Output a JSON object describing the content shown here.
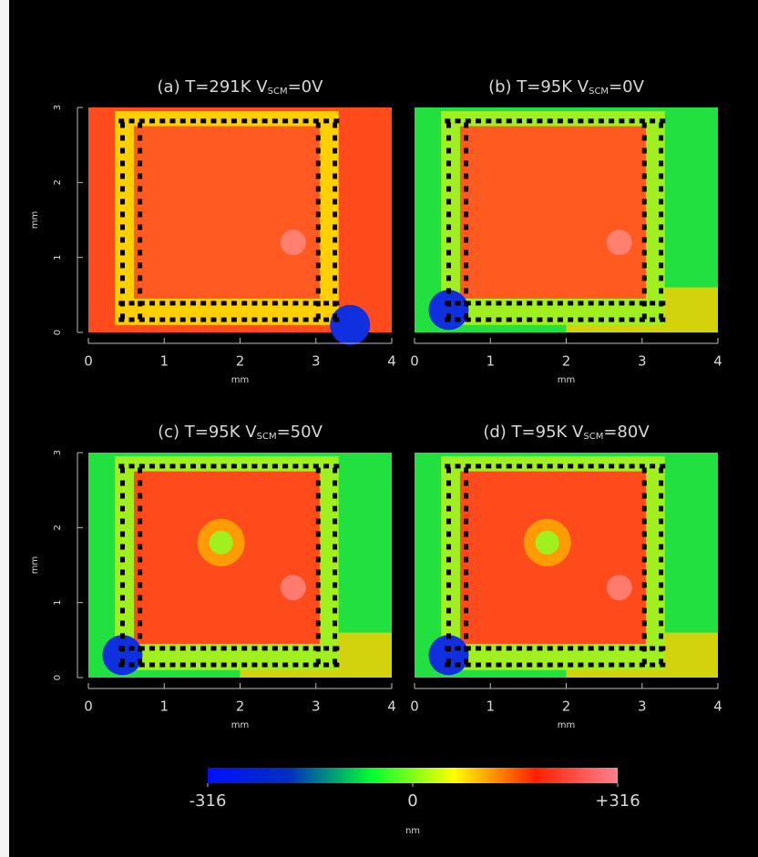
{
  "chart_data": [
    {
      "type": "heatmap",
      "title": "(a)  T=291K  ",
      "v": "V",
      "sub": "SCM",
      "bias": "=0V",
      "xlabel": "mm",
      "ylabel": "mm",
      "xlim": [
        0,
        4
      ],
      "xticks": [
        0,
        1,
        2,
        3,
        4
      ],
      "ylim": [
        0,
        3
      ],
      "yticks": [
        0,
        1,
        2,
        3
      ]
    },
    {
      "type": "heatmap",
      "title": "(b)  T=95K  ",
      "v": "V",
      "sub": "SCM",
      "bias": "=0V",
      "xlabel": "mm",
      "xlim": [
        0,
        4
      ],
      "xticks": [
        0,
        1,
        2,
        3,
        4
      ]
    },
    {
      "type": "heatmap",
      "title": "(c)  T=95K  ",
      "v": "V",
      "sub": "SCM",
      "bias": "=50V",
      "xlabel": "mm",
      "ylabel": "mm",
      "xlim": [
        0,
        4
      ],
      "xticks": [
        0,
        1,
        2,
        3,
        4
      ],
      "ylim": [
        0,
        3
      ],
      "yticks": [
        0,
        1,
        2,
        3
      ]
    },
    {
      "type": "heatmap",
      "title": "(d)  T=95K  ",
      "v": "V",
      "sub": "SCM",
      "bias": "=80V",
      "xlabel": "mm",
      "xlim": [
        0,
        4
      ],
      "xticks": [
        0,
        1,
        2,
        3,
        4
      ]
    }
  ],
  "colorbar": {
    "label": "nm",
    "lim": [
      -316,
      316
    ],
    "ticks": [
      -316,
      0,
      {
        "value": 316,
        "label": "+316"
      }
    ],
    "colors": [
      "#0010ff",
      "#0030c0",
      "#00ff30",
      "#ffff00",
      "#ff2000",
      "#ff8090"
    ]
  }
}
